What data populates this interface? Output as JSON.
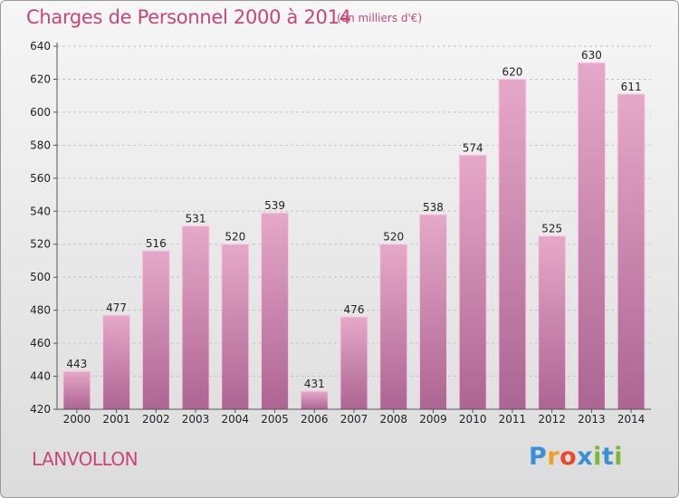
{
  "chart_data": {
    "type": "bar",
    "title": "Charges de Personnel 2000 à 2014",
    "subtitle": "(en milliers d'€)",
    "categories": [
      "2000",
      "2001",
      "2002",
      "2003",
      "2004",
      "2005",
      "2006",
      "2007",
      "2008",
      "2009",
      "2010",
      "2011",
      "2012",
      "2013",
      "2014"
    ],
    "values": [
      443,
      477,
      516,
      531,
      520,
      539,
      431,
      476,
      520,
      538,
      574,
      620,
      525,
      630,
      611
    ],
    "ylim": [
      420,
      640
    ],
    "yticks": [
      420,
      440,
      460,
      480,
      500,
      520,
      540,
      560,
      580,
      600,
      620,
      640
    ],
    "grid": true,
    "colors": {
      "bar": "#d98fb5",
      "title": "#c8457a"
    }
  },
  "place": "LANVOLLON",
  "logo": {
    "letters": [
      "P",
      "r",
      "o",
      "x",
      "i",
      "t",
      "i"
    ],
    "colors": [
      "#3a8fd6",
      "#f0a020",
      "#e84a2a",
      "#3a8fd6",
      "#7ab83a",
      "#3a8fd6",
      "#7ab83a"
    ]
  }
}
